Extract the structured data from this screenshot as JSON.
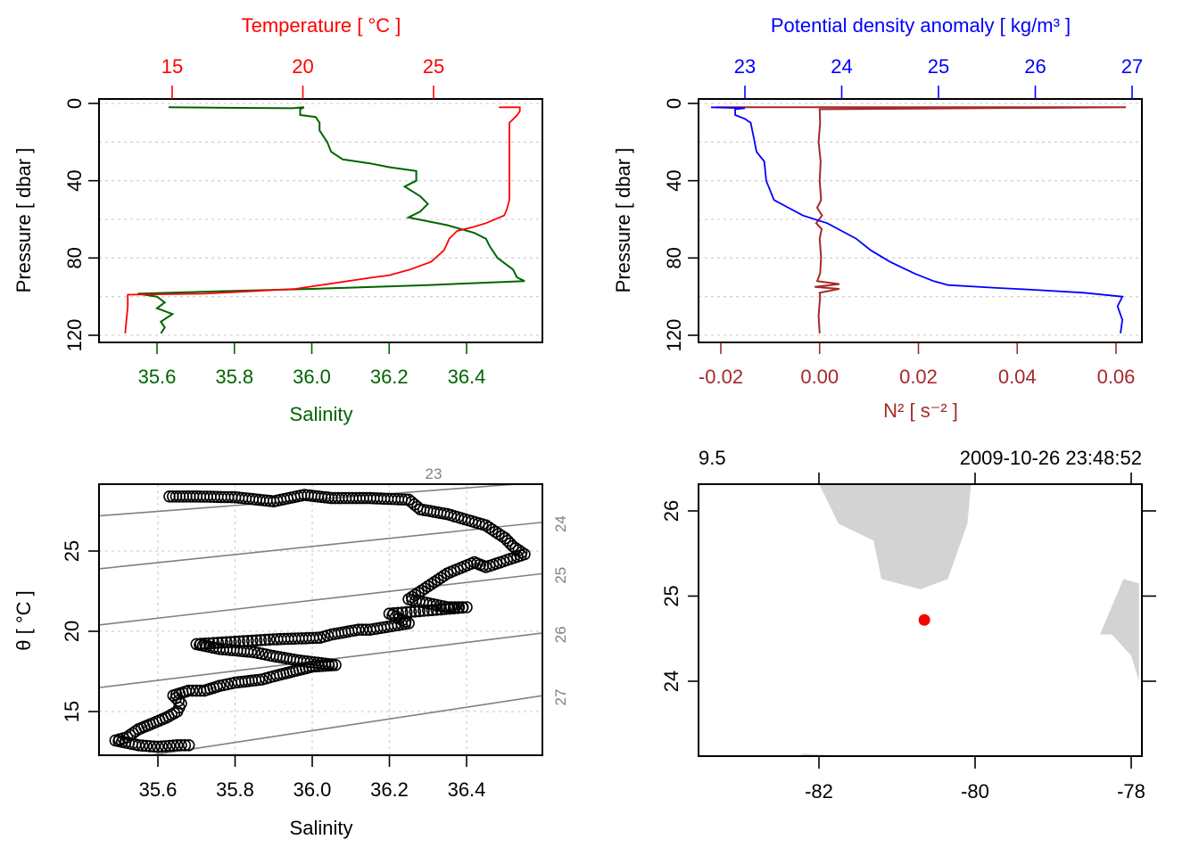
{
  "chart_data": [
    {
      "id": "profile-ts",
      "type": "line",
      "title": "",
      "top_axis_label": "Temperature [ °C ]",
      "bottom_axis_label": "Salinity",
      "left_axis_label": "Pressure [ dbar ]",
      "colors": {
        "temperature": "#ff0000",
        "salinity": "#006400",
        "grid": "#d3d3d3"
      },
      "y": {
        "label": "Pressure [ dbar ]",
        "ticks": [
          "0",
          "40",
          "80",
          "120"
        ],
        "gridlines": [
          0,
          20,
          40,
          60,
          80,
          100,
          120
        ],
        "lim": [
          0,
          122
        ],
        "reversed": true
      },
      "x_bottom": {
        "label": "Salinity",
        "ticks": [
          "35.6",
          "35.8",
          "36.0",
          "36.2",
          "36.4"
        ],
        "tick_values": [
          35.6,
          35.8,
          36.0,
          36.2,
          36.4
        ]
      },
      "x_top": {
        "label": "Temperature [ °C ]",
        "ticks": [
          "15",
          "20",
          "25"
        ],
        "tick_values": [
          15,
          20,
          25
        ]
      },
      "series": [
        {
          "name": "Salinity",
          "axis": "bottom",
          "points": [
            [
              35.63,
              2
            ],
            [
              35.95,
              2.5
            ],
            [
              35.98,
              2
            ],
            [
              35.97,
              3
            ],
            [
              35.97,
              6
            ],
            [
              36.01,
              7
            ],
            [
              36.02,
              10
            ],
            [
              36.02,
              14
            ],
            [
              36.04,
              20
            ],
            [
              36.05,
              25
            ],
            [
              36.08,
              29
            ],
            [
              36.15,
              31
            ],
            [
              36.2,
              33
            ],
            [
              36.27,
              35
            ],
            [
              36.27,
              40
            ],
            [
              36.24,
              43
            ],
            [
              36.28,
              48
            ],
            [
              36.3,
              52
            ],
            [
              36.28,
              56
            ],
            [
              36.25,
              59
            ],
            [
              36.35,
              63
            ],
            [
              36.42,
              67
            ],
            [
              36.45,
              70
            ],
            [
              36.46,
              74
            ],
            [
              36.48,
              80
            ],
            [
              36.52,
              86
            ],
            [
              36.53,
              90
            ],
            [
              36.55,
              92
            ],
            [
              36.3,
              94
            ],
            [
              36.0,
              96
            ],
            [
              35.8,
              97
            ],
            [
              35.55,
              98.5
            ],
            [
              35.6,
              100
            ],
            [
              35.62,
              103
            ],
            [
              35.6,
              106
            ],
            [
              35.64,
              109
            ],
            [
              35.61,
              113
            ],
            [
              35.62,
              116
            ],
            [
              35.61,
              119
            ]
          ]
        },
        {
          "name": "Temperature",
          "axis": "top",
          "points": [
            [
              27.5,
              2
            ],
            [
              28.3,
              2
            ],
            [
              28.3,
              4
            ],
            [
              28.2,
              6
            ],
            [
              27.9,
              10
            ],
            [
              27.9,
              20
            ],
            [
              27.9,
              40
            ],
            [
              27.9,
              50
            ],
            [
              27.8,
              55
            ],
            [
              27.7,
              58
            ],
            [
              27.0,
              62
            ],
            [
              26.5,
              64
            ],
            [
              25.9,
              66
            ],
            [
              25.6,
              70
            ],
            [
              25.4,
              76
            ],
            [
              24.9,
              82
            ],
            [
              24.1,
              86
            ],
            [
              23.3,
              89
            ],
            [
              22.7,
              90
            ],
            [
              19.7,
              96
            ],
            [
              16.2,
              98.5
            ],
            [
              13.3,
              99
            ],
            [
              13.3,
              105
            ],
            [
              13.2,
              119
            ]
          ]
        }
      ]
    },
    {
      "id": "profile-density-n2",
      "type": "line",
      "title": "",
      "top_axis_label": "Potential density anomaly [ kg/m³ ]",
      "bottom_axis_label": "N² [ s⁻² ]",
      "left_axis_label": "Pressure [ dbar ]",
      "colors": {
        "density": "#0000ff",
        "n2": "#a52a2a",
        "grid": "#d3d3d3"
      },
      "y": {
        "label": "Pressure [ dbar ]",
        "ticks": [
          "0",
          "40",
          "80",
          "120"
        ],
        "gridlines": [
          0,
          20,
          40,
          60,
          80,
          100,
          120
        ],
        "lim": [
          0,
          122
        ],
        "reversed": true
      },
      "x_bottom": {
        "label": "N² [ s⁻² ]",
        "ticks": [
          "-0.02",
          "0.00",
          "0.02",
          "0.04",
          "0.06"
        ],
        "tick_values": [
          -0.02,
          0.0,
          0.02,
          0.04,
          0.06
        ]
      },
      "x_top": {
        "label": "Potential density anomaly [ kg/m³ ]",
        "ticks": [
          "23",
          "24",
          "25",
          "26",
          "27"
        ],
        "tick_values": [
          23,
          24,
          25,
          26,
          27
        ]
      },
      "series": [
        {
          "name": "Potential density anomaly",
          "axis": "top",
          "points": [
            [
              22.65,
              2
            ],
            [
              23.0,
              2.5
            ],
            [
              22.9,
              3
            ],
            [
              22.9,
              6
            ],
            [
              23.0,
              8
            ],
            [
              23.06,
              10
            ],
            [
              23.1,
              20
            ],
            [
              23.12,
              25
            ],
            [
              23.2,
              30
            ],
            [
              23.22,
              40
            ],
            [
              23.3,
              50
            ],
            [
              23.45,
              54
            ],
            [
              23.6,
              58
            ],
            [
              23.85,
              62
            ],
            [
              24.0,
              66
            ],
            [
              24.15,
              70
            ],
            [
              24.3,
              76
            ],
            [
              24.5,
              82
            ],
            [
              24.75,
              88
            ],
            [
              24.95,
              92
            ],
            [
              25.1,
              94
            ],
            [
              25.6,
              95.5
            ],
            [
              26.0,
              96.5
            ],
            [
              26.5,
              98
            ],
            [
              26.9,
              100
            ],
            [
              26.85,
              105
            ],
            [
              26.9,
              112
            ],
            [
              26.88,
              119
            ]
          ]
        },
        {
          "name": "N²",
          "axis": "bottom",
          "points": [
            [
              -0.021,
              2
            ],
            [
              0.062,
              2
            ],
            [
              0.0,
              3
            ],
            [
              0.0001,
              10
            ],
            [
              -0.0002,
              20
            ],
            [
              0.0002,
              30
            ],
            [
              0.0,
              40
            ],
            [
              0.0003,
              50
            ],
            [
              -0.0005,
              54
            ],
            [
              0.0005,
              58
            ],
            [
              -0.0007,
              62
            ],
            [
              0.0004,
              65
            ],
            [
              0.0,
              70
            ],
            [
              0.0003,
              80
            ],
            [
              0.0001,
              88
            ],
            [
              -0.0005,
              92
            ],
            [
              0.004,
              93.5
            ],
            [
              -0.001,
              95
            ],
            [
              0.004,
              96
            ],
            [
              0.0,
              98
            ],
            [
              0.0001,
              100
            ],
            [
              -0.0002,
              110
            ],
            [
              0.0,
              119
            ]
          ]
        }
      ]
    },
    {
      "id": "ts-diagram",
      "type": "scatter",
      "title": "",
      "xlabel": "Salinity",
      "ylabel": "θ [ °C ]",
      "x_ticks": [
        "35.6",
        "35.8",
        "36.0",
        "36.2",
        "36.4"
      ],
      "y_ticks": [
        "15",
        "20",
        "25"
      ],
      "xlim": [
        35.45,
        36.6
      ],
      "ylim": [
        12.3,
        29.2
      ],
      "grid": true,
      "isopycnal_labels": [
        "23",
        "24",
        "25",
        "26",
        "27"
      ],
      "colors": {
        "points": "#000000",
        "isopycnals": "#808080",
        "isopycnal_labels": "#808080",
        "grid": "#d3d3d3"
      },
      "series": [
        {
          "name": "θ-S",
          "points": [
            [
              35.63,
              28.4
            ],
            [
              35.7,
              28.4
            ],
            [
              35.8,
              28.35
            ],
            [
              35.9,
              28.1
            ],
            [
              35.98,
              28.5
            ],
            [
              36.05,
              28.3
            ],
            [
              36.15,
              28.3
            ],
            [
              36.25,
              28.2
            ],
            [
              36.28,
              27.6
            ],
            [
              36.35,
              27.3
            ],
            [
              36.45,
              26.6
            ],
            [
              36.5,
              25.8
            ],
            [
              36.52,
              25.3
            ],
            [
              36.55,
              24.8
            ],
            [
              36.45,
              24.0
            ],
            [
              36.42,
              24.3
            ],
            [
              36.35,
              23.6
            ],
            [
              36.3,
              22.8
            ],
            [
              36.25,
              22.0
            ],
            [
              36.35,
              21.5
            ],
            [
              36.4,
              21.5
            ],
            [
              36.2,
              21.1
            ],
            [
              36.25,
              20.5
            ],
            [
              36.15,
              20.1
            ],
            [
              36.12,
              20.1
            ],
            [
              36.05,
              19.8
            ],
            [
              36.02,
              19.6
            ],
            [
              35.9,
              19.5
            ],
            [
              35.7,
              19.2
            ],
            [
              35.76,
              18.9
            ],
            [
              35.85,
              18.7
            ],
            [
              35.89,
              18.5
            ],
            [
              35.96,
              18.2
            ],
            [
              36.06,
              17.9
            ],
            [
              36.0,
              17.8
            ],
            [
              35.95,
              17.5
            ],
            [
              35.9,
              17.2
            ],
            [
              35.87,
              17.0
            ],
            [
              35.8,
              16.8
            ],
            [
              35.76,
              16.6
            ],
            [
              35.72,
              16.3
            ],
            [
              35.68,
              16.3
            ],
            [
              35.64,
              16.0
            ],
            [
              35.66,
              15.5
            ],
            [
              35.65,
              15.0
            ],
            [
              35.62,
              14.6
            ],
            [
              35.58,
              14.2
            ],
            [
              35.55,
              13.9
            ],
            [
              35.52,
              13.4
            ],
            [
              35.49,
              13.2
            ],
            [
              35.55,
              12.9
            ],
            [
              35.6,
              12.8
            ],
            [
              35.65,
              12.9
            ],
            [
              35.68,
              12.9
            ]
          ]
        }
      ]
    },
    {
      "id": "station-map",
      "type": "scatter",
      "title": "2009-10-26 23:48:52",
      "top_left_text": "9.5",
      "top_right_text": "2009-10-26 23:48:52",
      "x_ticks": [
        "-82",
        "-80",
        "-78"
      ],
      "y_ticks": [
        "26",
        "25",
        "24"
      ],
      "xlim": [
        -83.55,
        -77.9
      ],
      "ylim": [
        23.1,
        26.3
      ],
      "colors": {
        "land": "#d3d3d3",
        "station": "#ff0000"
      },
      "station": {
        "lon": -80.65,
        "lat": 24.72
      },
      "land": [
        [
          [
            -82.0,
            26.32
          ],
          [
            -81.75,
            25.85
          ],
          [
            -81.3,
            25.65
          ],
          [
            -81.2,
            25.2
          ],
          [
            -80.7,
            25.08
          ],
          [
            -80.35,
            25.2
          ],
          [
            -80.1,
            25.85
          ],
          [
            -80.05,
            26.32
          ]
        ],
        [
          [
            -78.1,
            25.2
          ],
          [
            -77.9,
            25.15
          ],
          [
            -77.9,
            24.0
          ],
          [
            -78.0,
            24.3
          ],
          [
            -78.25,
            24.55
          ],
          [
            -78.4,
            24.55
          ]
        ],
        [
          [
            -82.35,
            23.1
          ],
          [
            -82.2,
            23.15
          ],
          [
            -81.6,
            23.12
          ],
          [
            -81.5,
            23.1
          ]
        ]
      ]
    }
  ]
}
